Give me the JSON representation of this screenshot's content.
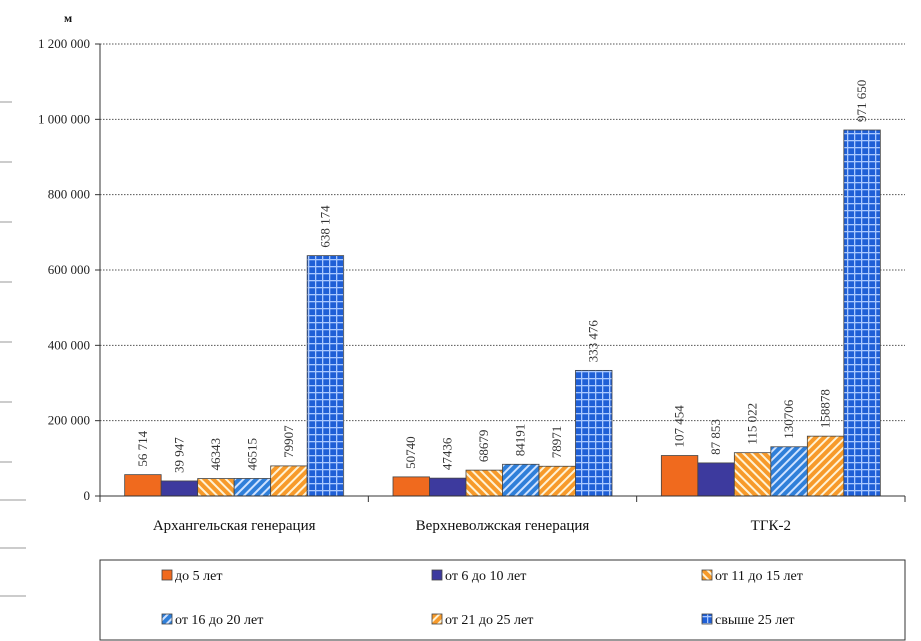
{
  "chart_data": {
    "type": "bar",
    "title": "",
    "xlabel": "",
    "ylabel": "м",
    "ylim": [
      0,
      1200000
    ],
    "yticks": [
      0,
      200000,
      400000,
      600000,
      800000,
      1000000,
      1200000
    ],
    "ytick_labels": [
      "0",
      "200 000",
      "400 000",
      "600 000",
      "800 000",
      "1 000 000",
      "1 200 000"
    ],
    "grid": "horizontal dotted",
    "legend_position": "bottom",
    "categories": [
      "Архангельская генерация",
      "Верхневолжская генерация",
      "ТГК-2"
    ],
    "series": [
      {
        "name": "до 5 лет",
        "values": [
          56714,
          50740,
          107454
        ],
        "labels": [
          "56 714",
          "50740",
          "107 454"
        ],
        "color": "#f06a1e",
        "pattern": "solid"
      },
      {
        "name": "от 6 до 10 лет",
        "values": [
          39947,
          47436,
          87853
        ],
        "labels": [
          "39 947",
          "47436",
          "87 853"
        ],
        "color": "#3d3a9e",
        "pattern": "solid"
      },
      {
        "name": "от 11 до 15 лет",
        "values": [
          46343,
          68679,
          115022
        ],
        "labels": [
          "46343",
          "68679",
          "115 022"
        ],
        "color": "#f79a2a",
        "pattern": "stripes-back"
      },
      {
        "name": "от 16 до 20 лет",
        "values": [
          46515,
          84191,
          130706
        ],
        "labels": [
          "46515",
          "84191",
          "130706"
        ],
        "color": "#2f7fd9",
        "pattern": "stripes"
      },
      {
        "name": "от 21 до 25 лет",
        "values": [
          79907,
          78971,
          158878
        ],
        "labels": [
          "79907",
          "78971",
          "158878"
        ],
        "color": "#f79a2a",
        "pattern": "stripes"
      },
      {
        "name": "свыше 25 лет",
        "values": [
          638174,
          333476,
          971650
        ],
        "labels": [
          "638 174",
          "333 476",
          "971 650"
        ],
        "color": "#1f5fd6",
        "pattern": "grid"
      }
    ]
  }
}
